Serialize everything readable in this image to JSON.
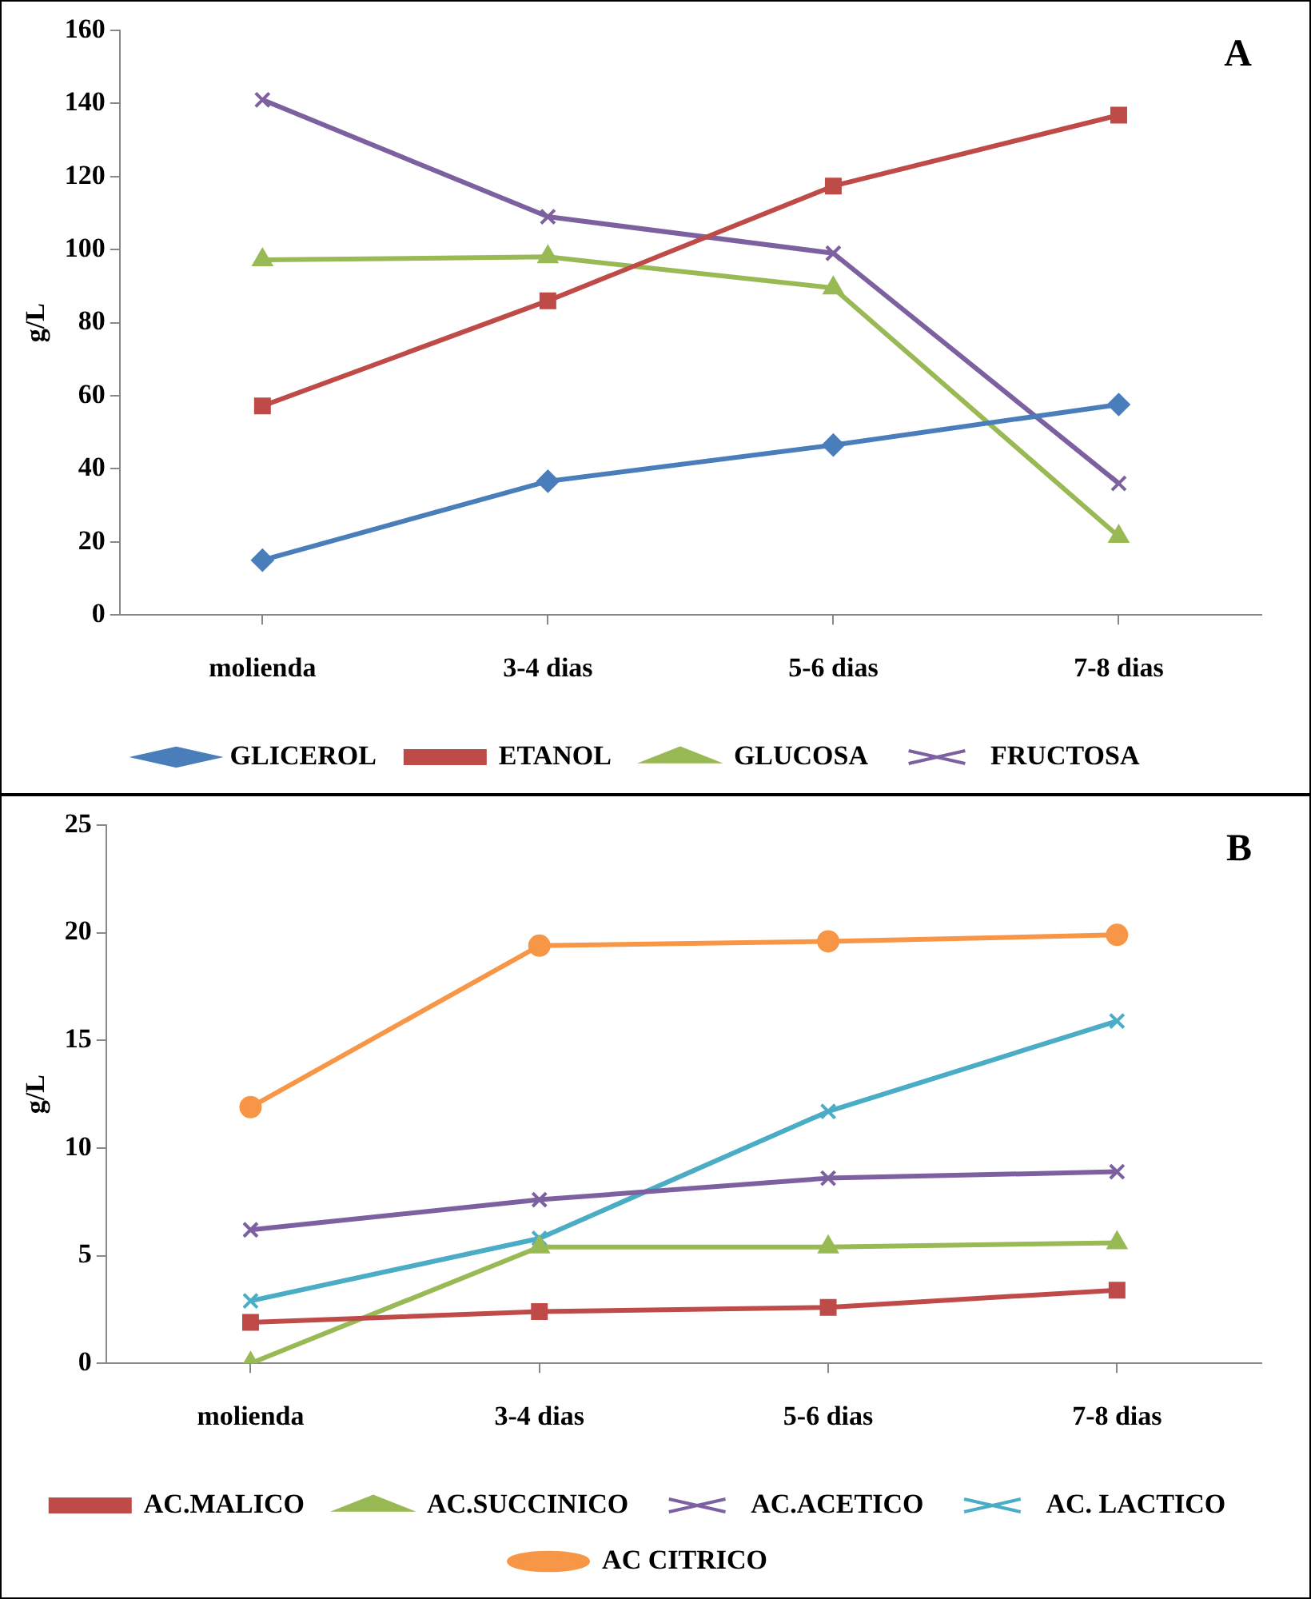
{
  "chart_data": [
    {
      "type": "line",
      "ylabel": "g/L",
      "annotations": [
        "A"
      ],
      "categories": [
        "molienda",
        "3-4 dias",
        "5-6 dias",
        "7-8 dias"
      ],
      "ylim": [
        0,
        160
      ],
      "yticks": [
        0,
        20,
        40,
        60,
        80,
        100,
        120,
        140,
        160
      ],
      "grid": false,
      "legend": "bottom",
      "line_style": "solid",
      "series": [
        {
          "name": "GLICEROL",
          "color": "#4a7ebb",
          "marker": "diamond",
          "values": [
            15,
            36.6,
            46.5,
            57.6
          ]
        },
        {
          "name": "ETANOL",
          "color": "#be4b48",
          "marker": "square",
          "values": [
            57.2,
            86,
            117.4,
            136.8
          ]
        },
        {
          "name": "GLUCOSA",
          "color": "#98b954",
          "marker": "triangle",
          "values": [
            97.2,
            98,
            89.5,
            21.5
          ]
        },
        {
          "name": "FRUCTOSA",
          "color": "#7d60a0",
          "marker": "cross",
          "values": [
            141,
            109,
            99,
            36
          ]
        }
      ]
    },
    {
      "type": "line",
      "ylabel": "g/L",
      "annotations": [
        "B"
      ],
      "categories": [
        "molienda",
        "3-4 dias",
        "5-6 dias",
        "7-8 dias"
      ],
      "ylim": [
        0,
        25
      ],
      "yticks": [
        0,
        5,
        10,
        15,
        20,
        25
      ],
      "grid": false,
      "legend": "bottom",
      "line_style": "solid",
      "series": [
        {
          "name": "AC.MALICO",
          "color": "#be4b48",
          "marker": "square",
          "values": [
            1.9,
            2.4,
            2.6,
            3.4
          ]
        },
        {
          "name": "AC.SUCCINICO",
          "color": "#98b954",
          "marker": "triangle",
          "values": [
            0,
            5.4,
            5.4,
            5.6
          ]
        },
        {
          "name": "AC.ACETICO",
          "color": "#7d60a0",
          "marker": "cross",
          "values": [
            6.2,
            7.6,
            8.6,
            8.9
          ]
        },
        {
          "name": "AC. LACTICO",
          "color": "#4bacc6",
          "marker": "cross",
          "values": [
            2.9,
            5.8,
            11.7,
            15.9
          ]
        },
        {
          "name": "AC CITRICO",
          "color": "#f79646",
          "marker": "circle",
          "values": [
            11.9,
            19.4,
            19.6,
            19.9
          ]
        }
      ]
    }
  ]
}
